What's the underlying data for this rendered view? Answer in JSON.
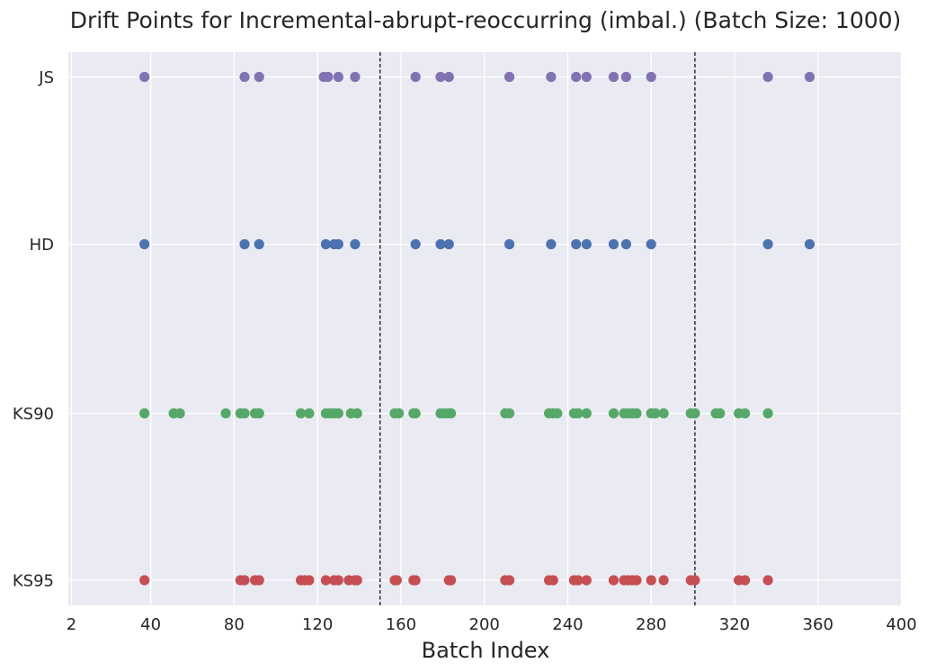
{
  "chart_data": {
    "type": "scatter",
    "title": "Drift Points for Incremental-abrupt-reoccurring (imbal.) (Batch Size: 1000)",
    "xlabel": "Batch Index",
    "ylabel": "",
    "xlim": [
      1,
      400
    ],
    "xticks": [
      2,
      40,
      80,
      120,
      160,
      200,
      240,
      280,
      320,
      360,
      400
    ],
    "xtick_labels": [
      "2",
      "40",
      "80",
      "120",
      "160",
      "200",
      "240",
      "280",
      "320",
      "360",
      "400"
    ],
    "categories": [
      "KS95",
      "KS90",
      "HD",
      "JS"
    ],
    "grid": true,
    "vlines": [
      150,
      301
    ],
    "series": [
      {
        "name": "KS95",
        "color": "#c44e52",
        "y": "KS95",
        "x": [
          37,
          83,
          85,
          90,
          92,
          112,
          114,
          116,
          124,
          128,
          130,
          135,
          138,
          139,
          157,
          158,
          166,
          167,
          183,
          184,
          210,
          212,
          231,
          233,
          243,
          245,
          249,
          262,
          267,
          269,
          271,
          273,
          280,
          286,
          299,
          301,
          322,
          325,
          336
        ]
      },
      {
        "name": "KS90",
        "color": "#55a868",
        "y": "KS90",
        "x": [
          37,
          51,
          54,
          76,
          83,
          85,
          90,
          92,
          112,
          116,
          124,
          126,
          128,
          130,
          136,
          139,
          157,
          159,
          166,
          167,
          179,
          181,
          183,
          184,
          210,
          212,
          231,
          233,
          235,
          243,
          245,
          249,
          262,
          267,
          269,
          271,
          273,
          280,
          282,
          286,
          299,
          301,
          311,
          313,
          322,
          325,
          336
        ]
      },
      {
        "name": "HD",
        "color": "#4c72b0",
        "y": "HD",
        "x": [
          37,
          85,
          92,
          124,
          128,
          130,
          138,
          167,
          179,
          183,
          212,
          232,
          244,
          249,
          262,
          268,
          280,
          336,
          356
        ]
      },
      {
        "name": "JS",
        "color": "#8172b3",
        "y": "JS",
        "x": [
          37,
          85,
          92,
          123,
          125,
          130,
          138,
          167,
          179,
          183,
          212,
          232,
          244,
          249,
          262,
          268,
          280,
          336,
          356
        ]
      }
    ],
    "colors": {
      "plot_bg": "#eaeaf2",
      "grid": "#ffffff",
      "vline": "#000000",
      "text": "#262626"
    }
  }
}
